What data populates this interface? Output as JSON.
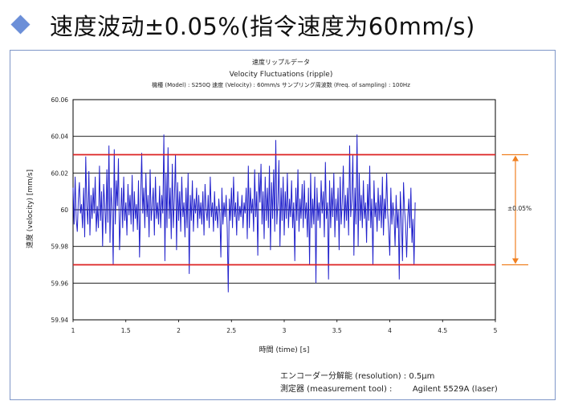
{
  "header": {
    "title": "速度波动±0.05%(指令速度为60mm/s)",
    "bullet_icon": "diamond-icon",
    "bullet_color": "#6c8fd8"
  },
  "chart_data": {
    "type": "line",
    "title": "速度リップルデータ",
    "subtitle": "Velocity  Fluctuations (ripple)",
    "info_line": "機種 (Model) : S250Q  速度 (Velocity) : 60mm/s  サンプリング周波数 (Freq. of sampling) : 100Hz",
    "xlabel": "時間 (time) [s]",
    "ylabel": "速度 (velocity) [mm/s]",
    "xlim": [
      1,
      5
    ],
    "ylim": [
      59.94,
      60.06
    ],
    "x_ticks": [
      "1",
      "1.5",
      "2",
      "2.5",
      "3",
      "3.5",
      "4",
      "4.5",
      "5"
    ],
    "y_ticks": [
      "60.06",
      "60.04",
      "60.02",
      "60",
      "59.98",
      "59.96",
      "59.94"
    ],
    "grid": true,
    "series_color": "#2222cc",
    "limit_color": "#dd2222",
    "limit_lines": [
      60.03,
      59.97
    ],
    "band_annotation": {
      "label": "±0.05%",
      "color": "#f08020",
      "from": 60.03,
      "to": 59.97
    },
    "footer": {
      "line1": "エンコーダー分解能 (resolution) : 0.5μm",
      "line2": "測定器 (measurement tool) :        Agilent 5529A (laser)"
    },
    "series": [
      {
        "sample_rate_hz": 100,
        "x_start": 1.0,
        "values": [
          60.012,
          59.992,
          60.018,
          59.995,
          59.988,
          60.006,
          60.015,
          59.998,
          60.003,
          59.99,
          60.012,
          59.985,
          60.029,
          60.002,
          59.992,
          60.021,
          59.986,
          60.008,
          59.995,
          60.012,
          59.998,
          60.018,
          59.988,
          60.002,
          59.99,
          60.024,
          59.994,
          60.01,
          59.98,
          60.014,
          60.003,
          59.987,
          60.022,
          59.993,
          60.035,
          59.982,
          60.012,
          60.0,
          59.97,
          60.033,
          59.992,
          60.016,
          60.002,
          60.028,
          59.978,
          59.996,
          60.012,
          59.99,
          60.018,
          59.994,
          60.004,
          59.986,
          60.014,
          59.997,
          60.008,
          59.992,
          60.019,
          59.988,
          60.01,
          59.995,
          60.003,
          59.989,
          60.016,
          59.974,
          60.006,
          60.031,
          59.998,
          60.012,
          59.99,
          60.02,
          59.996,
          60.008,
          59.985,
          60.022,
          59.994,
          60.002,
          60.012,
          59.986,
          60.018,
          59.995,
          60.004,
          59.992,
          60.013,
          59.99,
          60.008,
          59.998,
          60.041,
          59.972,
          60.02,
          59.99,
          60.034,
          59.995,
          60.012,
          59.984,
          60.025,
          59.99,
          60.006,
          60.03,
          59.978,
          60.015,
          59.994,
          60.01,
          59.988,
          60.018,
          59.996,
          60.004,
          59.985,
          60.012,
          59.99,
          60.02,
          59.965,
          60.008,
          59.994,
          60.016,
          59.988,
          60.006,
          59.998,
          60.012,
          59.99,
          60.008,
          59.995,
          60.004,
          59.992,
          60.01,
          59.986,
          60.014,
          60.0,
          59.994,
          60.008,
          59.99,
          60.018,
          59.996,
          60.004,
          59.988,
          60.01,
          59.994,
          60.002,
          59.99,
          60.006,
          59.998,
          59.974,
          60.012,
          59.992,
          60.004,
          59.996,
          60.008,
          59.99,
          59.955,
          60.006,
          59.994,
          60.012,
          59.99,
          60.018,
          59.996,
          60.004,
          59.986,
          60.01,
          59.994,
          60.002,
          59.996,
          60.008,
          59.99,
          60.004,
          59.998,
          60.012,
          59.984,
          60.024,
          59.99,
          60.012,
          59.998,
          60.006,
          59.988,
          60.022,
          59.996,
          60.01,
          59.975,
          60.02,
          60.004,
          60.025,
          59.992,
          60.01,
          59.984,
          60.018,
          59.994,
          60.012,
          59.99,
          60.024,
          59.978,
          60.015,
          59.995,
          60.022,
          59.988,
          60.038,
          59.992,
          60.004,
          60.027,
          59.98,
          60.012,
          59.994,
          60.018,
          59.986,
          60.01,
          59.995,
          60.02,
          59.99,
          60.006,
          59.996,
          60.016,
          59.99,
          60.004,
          59.972,
          60.012,
          59.994,
          60.022,
          59.988,
          60.006,
          59.995,
          60.014,
          59.99,
          60.016,
          59.995,
          60.004,
          59.985,
          60.012,
          59.97,
          60.02,
          59.99,
          60.006,
          59.992,
          60.018,
          59.96,
          60.012,
          59.994,
          60.004,
          59.99,
          60.016,
          59.998,
          60.01,
          59.985,
          60.026,
          59.995,
          60.004,
          59.962,
          60.016,
          59.99,
          60.012,
          59.996,
          60.02,
          59.985,
          60.006,
          59.994,
          60.012,
          59.978,
          60.018,
          59.992,
          60.004,
          60.024,
          59.99,
          60.008,
          59.994,
          60.012,
          59.986,
          60.035,
          59.996,
          60.006,
          60.03,
          59.975,
          60.012,
          59.992,
          60.041,
          59.98,
          60.02,
          59.994,
          60.008,
          59.99,
          60.016,
          59.995,
          60.004,
          59.982,
          60.014,
          59.994,
          60.024,
          59.99,
          60.006,
          59.97,
          60.016,
          59.996,
          60.004,
          59.988,
          60.012,
          59.994,
          60.008,
          59.99,
          60.018,
          59.986,
          60.006,
          59.995,
          60.02,
          59.998,
          59.988,
          59.975,
          60.012,
          59.992,
          60.004,
          59.996,
          59.98,
          60.008,
          59.99,
          60.0,
          59.962,
          60.01,
          59.995,
          59.972,
          60.015,
          60.0,
          59.992,
          59.974,
          59.996,
          60.006,
          59.99,
          60.012,
          59.982,
          59.995,
          59.97,
          60.004
        ],
        "clip_end": 5.0
      }
    ]
  }
}
